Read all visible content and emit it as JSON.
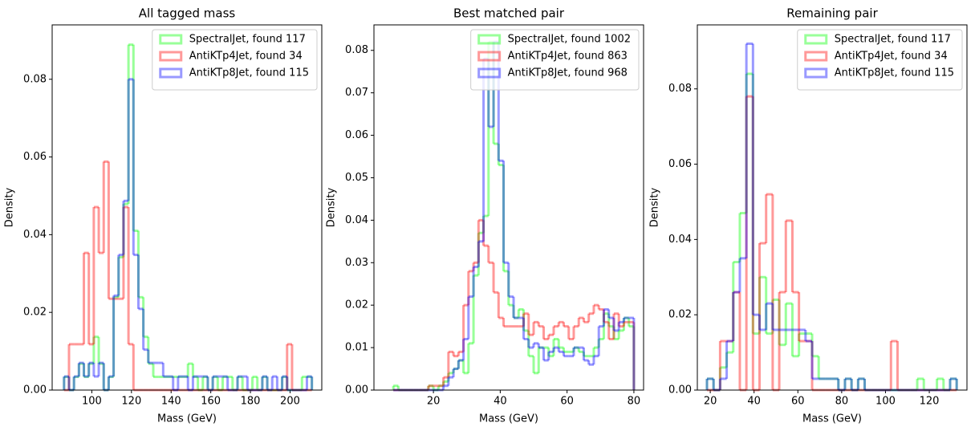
{
  "chart_data": [
    {
      "type": "histogram",
      "title": "All tagged mass",
      "x_label": "Mass (GeV)",
      "y_label": "Density",
      "xlim": [
        80,
        216
      ],
      "ylim": [
        0,
        0.094
      ],
      "xticks": [
        100,
        120,
        140,
        160,
        180,
        200
      ],
      "yticks": [
        {
          "value": 0,
          "label": "0.00"
        },
        {
          "value": 0.02,
          "label": "0.02"
        },
        {
          "value": 0.04,
          "label": "0.04"
        },
        {
          "value": 0.06,
          "label": "0.06"
        },
        {
          "value": 0.08,
          "label": "0.08"
        }
      ],
      "legend": "upper right",
      "bins": [
        86,
        88.5,
        91,
        93.5,
        96,
        98.5,
        101,
        103.5,
        106,
        108.5,
        111,
        113.5,
        116,
        118.5,
        121,
        123.5,
        126,
        128.5,
        131,
        133.5,
        136,
        138.5,
        141,
        143.5,
        146,
        148.5,
        151,
        153.5,
        156,
        158.5,
        161,
        163.5,
        166,
        168.5,
        171,
        173.5,
        176,
        178.5,
        181,
        183.5,
        186,
        188.5,
        191,
        193.5,
        196,
        198.5,
        201,
        203.5,
        206,
        208.5,
        211
      ],
      "series": [
        {
          "name": "SpectralJet, found 117",
          "color": "#00ff00",
          "values": [
            0.0034,
            0,
            0.0034,
            0.0068,
            0.0034,
            0.0068,
            0.0137,
            0.0068,
            0,
            0.0034,
            0.0239,
            0.0342,
            0.0479,
            0.0889,
            0.041,
            0.0239,
            0.0137,
            0.0068,
            0.0034,
            0.0034,
            0.0034,
            0.0034,
            0.0034,
            0.0034,
            0.0034,
            0.0068,
            0.0034,
            0,
            0.0034,
            0,
            0.0034,
            0,
            0.0034,
            0.0034,
            0,
            0.0034,
            0,
            0,
            0.0034,
            0,
            0.0034,
            0,
            0,
            0,
            0.0034,
            0,
            0,
            0,
            0.0034,
            0.0034
          ]
        },
        {
          "name": "AntiKTp4Jet, found 34",
          "color": "#ff0000",
          "values": [
            0,
            0.0118,
            0.0118,
            0.0118,
            0.0353,
            0.0118,
            0.0471,
            0.0353,
            0.0588,
            0.0235,
            0.0235,
            0.0235,
            0.0471,
            0.0118,
            0,
            0,
            0,
            0,
            0,
            0,
            0,
            0,
            0,
            0,
            0,
            0,
            0,
            0,
            0,
            0,
            0,
            0,
            0,
            0,
            0,
            0,
            0,
            0,
            0,
            0,
            0,
            0,
            0,
            0,
            0,
            0.0118,
            0,
            0,
            0,
            0
          ]
        },
        {
          "name": "AntiKTp8Jet, found 115",
          "color": "#0000ff",
          "values": [
            0.0035,
            0,
            0.0035,
            0.007,
            0.0035,
            0.007,
            0.0035,
            0.007,
            0,
            0.0035,
            0.0243,
            0.0348,
            0.0487,
            0.08,
            0.0348,
            0.0209,
            0.0104,
            0.007,
            0.007,
            0.007,
            0.0035,
            0.0035,
            0,
            0.0035,
            0.0035,
            0,
            0.0035,
            0.0035,
            0.0035,
            0,
            0.0035,
            0.0035,
            0.0035,
            0,
            0,
            0.0035,
            0.0035,
            0,
            0,
            0,
            0.0035,
            0,
            0.0035,
            0,
            0.0035,
            0,
            0,
            0,
            0,
            0.0035
          ]
        }
      ]
    },
    {
      "type": "histogram",
      "title": "Best matched pair",
      "x_label": "Mass (GeV)",
      "y_label": "Density",
      "xlim": [
        2.2,
        82.9
      ],
      "ylim": [
        0,
        0.086
      ],
      "xticks": [
        20,
        40,
        60,
        80
      ],
      "yticks": [
        {
          "value": 0,
          "label": "0.00"
        },
        {
          "value": 0.01,
          "label": "0.01"
        },
        {
          "value": 0.02,
          "label": "0.02"
        },
        {
          "value": 0.03,
          "label": "0.03"
        },
        {
          "value": 0.04,
          "label": "0.04"
        },
        {
          "value": 0.05,
          "label": "0.05"
        },
        {
          "value": 0.06,
          "label": "0.06"
        },
        {
          "value": 0.07,
          "label": "0.07"
        },
        {
          "value": 0.08,
          "label": "0.08"
        }
      ],
      "legend": "upper right",
      "bins": [
        8,
        9.5,
        11,
        12.5,
        14,
        15.5,
        17,
        18.5,
        20,
        21.5,
        23,
        24.5,
        26,
        27.5,
        29,
        30.5,
        32,
        33.5,
        35,
        36.5,
        38,
        39.5,
        41,
        42.5,
        44,
        45.5,
        47,
        48.5,
        50,
        51.5,
        53,
        54.5,
        56,
        57.5,
        59,
        60.5,
        62,
        63.5,
        65,
        66.5,
        68,
        69.5,
        71,
        72.5,
        74,
        75.5,
        77,
        78.5,
        80
      ],
      "series": [
        {
          "name": "SpectralJet, found 1002",
          "color": "#00ff00",
          "values": [
            0.001,
            0,
            0,
            0,
            0,
            0,
            0,
            0.001,
            0,
            0.001,
            0.002,
            0.004,
            0.005,
            0.007,
            0.004,
            0.011,
            0.027,
            0.037,
            0.041,
            0.082,
            0.058,
            0.053,
            0.028,
            0.02,
            0.017,
            0.019,
            0.014,
            0.008,
            0.004,
            0.01,
            0.01,
            0.008,
            0.012,
            0.01,
            0.009,
            0.009,
            0.01,
            0.009,
            0.008,
            0.008,
            0.01,
            0.012,
            0.018,
            0.015,
            0.012,
            0.014,
            0.017,
            0.015
          ]
        },
        {
          "name": "AntiKTp4Jet, found 863",
          "color": "#ff0000",
          "values": [
            0,
            0,
            0,
            0,
            0,
            0,
            0,
            0.001,
            0.001,
            0.001,
            0.003,
            0.009,
            0.008,
            0.009,
            0.02,
            0.028,
            0.03,
            0.04,
            0.034,
            0.03,
            0.023,
            0.017,
            0.015,
            0.015,
            0.015,
            0.015,
            0.018,
            0.013,
            0.016,
            0.015,
            0.012,
            0.013,
            0.015,
            0.016,
            0.015,
            0.012,
            0.015,
            0.017,
            0.016,
            0.018,
            0.02,
            0.019,
            0.016,
            0.012,
            0.018,
            0.015,
            0.016,
            0.016
          ]
        },
        {
          "name": "AntiKTp8Jet, found 968",
          "color": "#0000ff",
          "values": [
            0,
            0,
            0,
            0,
            0,
            0,
            0,
            0,
            0,
            0,
            0.001,
            0.003,
            0.005,
            0.007,
            0.012,
            0.022,
            0.029,
            0.035,
            0.078,
            0.062,
            0.082,
            0.054,
            0.03,
            0.022,
            0.017,
            0.017,
            0.012,
            0.01,
            0.011,
            0.01,
            0.007,
            0.009,
            0.01,
            0.009,
            0.008,
            0.008,
            0.01,
            0.01,
            0.007,
            0.006,
            0.008,
            0.015,
            0.019,
            0.017,
            0.014,
            0.016,
            0.017,
            0.017
          ]
        }
      ]
    },
    {
      "type": "histogram",
      "title": "Remaining pair",
      "x_label": "Mass (GeV)",
      "y_label": "Density",
      "xlim": [
        14.1,
        137.2
      ],
      "ylim": [
        0,
        0.097
      ],
      "xticks": [
        20,
        40,
        60,
        80,
        100,
        120
      ],
      "yticks": [
        {
          "value": 0,
          "label": "0.00"
        },
        {
          "value": 0.02,
          "label": "0.02"
        },
        {
          "value": 0.04,
          "label": "0.04"
        },
        {
          "value": 0.06,
          "label": "0.06"
        },
        {
          "value": 0.08,
          "label": "0.08"
        }
      ],
      "legend": "upper right",
      "bins": [
        18.5,
        21.5,
        24.5,
        27.5,
        30.5,
        33.5,
        36.5,
        39.5,
        42.5,
        45.5,
        48.5,
        51.5,
        54.5,
        57.5,
        60.5,
        63.5,
        66.5,
        69.5,
        72.5,
        75.5,
        78.5,
        81.5,
        84.5,
        87.5,
        90.5,
        93.5,
        96.5,
        99.5,
        102.5,
        105.5,
        108.5,
        111.5,
        114.5,
        117.5,
        120.5,
        123.5,
        126.5,
        129.5,
        132.5
      ],
      "series": [
        {
          "name": "SpectralJet, found 117",
          "color": "#00ff00",
          "values": [
            0.003,
            0,
            0.006,
            0.01,
            0.034,
            0.047,
            0.084,
            0.015,
            0.03,
            0.015,
            0.024,
            0.012,
            0.023,
            0.009,
            0.015,
            0.015,
            0.009,
            0.003,
            0.003,
            0.003,
            0,
            0.003,
            0,
            0.003,
            0,
            0,
            0,
            0,
            0,
            0,
            0,
            0,
            0.003,
            0,
            0,
            0.003,
            0,
            0.003
          ]
        },
        {
          "name": "AntiKTp4Jet, found 34",
          "color": "#ff0000",
          "values": [
            0,
            0,
            0.013,
            0.013,
            0.026,
            0,
            0.078,
            0,
            0.039,
            0.052,
            0,
            0.026,
            0.045,
            0.026,
            0.013,
            0.013,
            0,
            0,
            0,
            0,
            0,
            0,
            0,
            0,
            0,
            0,
            0,
            0,
            0.013,
            0,
            0,
            0,
            0,
            0,
            0,
            0,
            0,
            0
          ]
        },
        {
          "name": "AntiKTp8Jet, found 115",
          "color": "#0000ff",
          "values": [
            0.003,
            0,
            0.003,
            0.013,
            0.026,
            0.035,
            0.092,
            0.02,
            0.016,
            0.023,
            0.016,
            0.016,
            0.016,
            0.016,
            0.016,
            0.013,
            0.003,
            0.003,
            0.003,
            0.003,
            0,
            0.003,
            0,
            0.003,
            0,
            0,
            0,
            0,
            0,
            0,
            0,
            0,
            0,
            0,
            0,
            0,
            0,
            0.003
          ]
        }
      ]
    }
  ]
}
